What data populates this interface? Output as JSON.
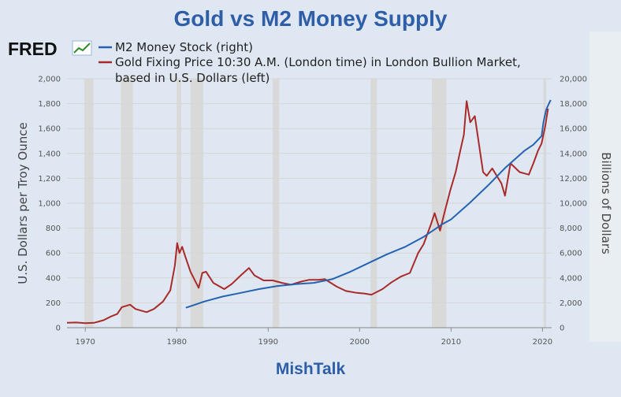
{
  "page": {
    "title": "Gold vs M2 Money Supply",
    "footer": "MishTalk",
    "source_logo": "FRED"
  },
  "colors": {
    "title": "#2f5ea8",
    "gold": "#aa2a2a",
    "m2": "#2563b0",
    "recession": "#d9d9d9"
  },
  "chart_data": {
    "type": "line",
    "legend": [
      "M2 Money Stock (right)",
      "Gold Fixing Price 10:30 A.M. (London time) in London Bullion Market,",
      "based in U.S. Dollars (left)"
    ],
    "ylabel_left": "U.S. Dollars per Troy Ounce",
    "ylabel_right": "Billions of Dollars",
    "xlim": [
      1968,
      2021
    ],
    "ylim_left": [
      0,
      2000
    ],
    "ylim_right": [
      0,
      20000
    ],
    "x_ticks": [
      "1970",
      "1980",
      "1990",
      "2000",
      "2010",
      "2020"
    ],
    "y_left_ticks": [
      "0",
      "200",
      "400",
      "600",
      "800",
      "1,000",
      "1,200",
      "1,400",
      "1,600",
      "1,800",
      "2,000"
    ],
    "y_right_ticks": [
      "0",
      "2,000",
      "4,000",
      "6,000",
      "8,000",
      "10,000",
      "12,000",
      "14,000",
      "16,000",
      "18,000",
      "20,000"
    ],
    "recessions": [
      [
        1969.9,
        1970.9
      ],
      [
        1973.9,
        1975.2
      ],
      [
        1980.0,
        1980.5
      ],
      [
        1981.5,
        1982.9
      ],
      [
        1990.5,
        1991.2
      ],
      [
        2001.2,
        2001.9
      ],
      [
        2007.9,
        2009.5
      ],
      [
        2020.1,
        2020.4
      ]
    ],
    "series": [
      {
        "name": "Gold Fixing Price 10:30 A.M. (London time) in London Bullion Market, based in U.S. Dollars (left)",
        "axis": "left",
        "x": [
          1968.0,
          1969.0,
          1970.0,
          1971.0,
          1972.0,
          1972.8,
          1973.5,
          1974.0,
          1974.9,
          1975.5,
          1976.7,
          1977.5,
          1978.5,
          1979.3,
          1979.8,
          1980.05,
          1980.3,
          1980.6,
          1980.9,
          1981.5,
          1982.4,
          1982.8,
          1983.2,
          1984.0,
          1985.2,
          1986.0,
          1987.0,
          1987.9,
          1988.5,
          1989.5,
          1990.5,
          1991.5,
          1992.5,
          1993.6,
          1994.5,
          1995.5,
          1996.2,
          1997.5,
          1998.5,
          1999.7,
          2000.5,
          2001.3,
          2002.5,
          2003.5,
          2004.5,
          2005.5,
          2006.4,
          2007.0,
          2007.8,
          2008.2,
          2008.8,
          2009.3,
          2009.9,
          2010.5,
          2011.0,
          2011.4,
          2011.7,
          2012.1,
          2012.6,
          2013.2,
          2013.5,
          2013.9,
          2014.5,
          2015.5,
          2015.9,
          2016.5,
          2017.5,
          2018.5,
          2019.0,
          2019.5,
          2019.9,
          2020.3,
          2020.6
        ],
        "values": [
          40,
          42,
          36,
          40,
          60,
          90,
          110,
          165,
          185,
          150,
          125,
          150,
          210,
          300,
          500,
          680,
          600,
          650,
          580,
          450,
          320,
          440,
          450,
          360,
          310,
          350,
          420,
          480,
          420,
          380,
          380,
          360,
          345,
          370,
          385,
          385,
          390,
          330,
          295,
          280,
          275,
          265,
          310,
          365,
          410,
          440,
          600,
          670,
          830,
          920,
          780,
          930,
          1100,
          1250,
          1420,
          1550,
          1820,
          1650,
          1700,
          1400,
          1250,
          1220,
          1280,
          1160,
          1060,
          1320,
          1250,
          1230,
          1320,
          1420,
          1480,
          1620,
          1760
        ]
      },
      {
        "name": "M2 Money Stock (right)",
        "axis": "right",
        "x": [
          1981.0,
          1982.0,
          1983.0,
          1985.0,
          1987.0,
          1989.0,
          1991.0,
          1993.0,
          1995.0,
          1997.0,
          1999.0,
          2001.0,
          2003.0,
          2005.0,
          2007.0,
          2008.0,
          2009.0,
          2010.0,
          2012.0,
          2014.0,
          2016.0,
          2018.0,
          2019.0,
          2019.9,
          2020.1,
          2020.4,
          2020.7,
          2020.9
        ],
        "values": [
          1600,
          1850,
          2100,
          2500,
          2800,
          3100,
          3350,
          3500,
          3600,
          3900,
          4500,
          5200,
          5900,
          6500,
          7300,
          7800,
          8300,
          8700,
          10000,
          11400,
          12900,
          14200,
          14700,
          15400,
          16500,
          17500,
          18000,
          18300
        ]
      }
    ]
  }
}
